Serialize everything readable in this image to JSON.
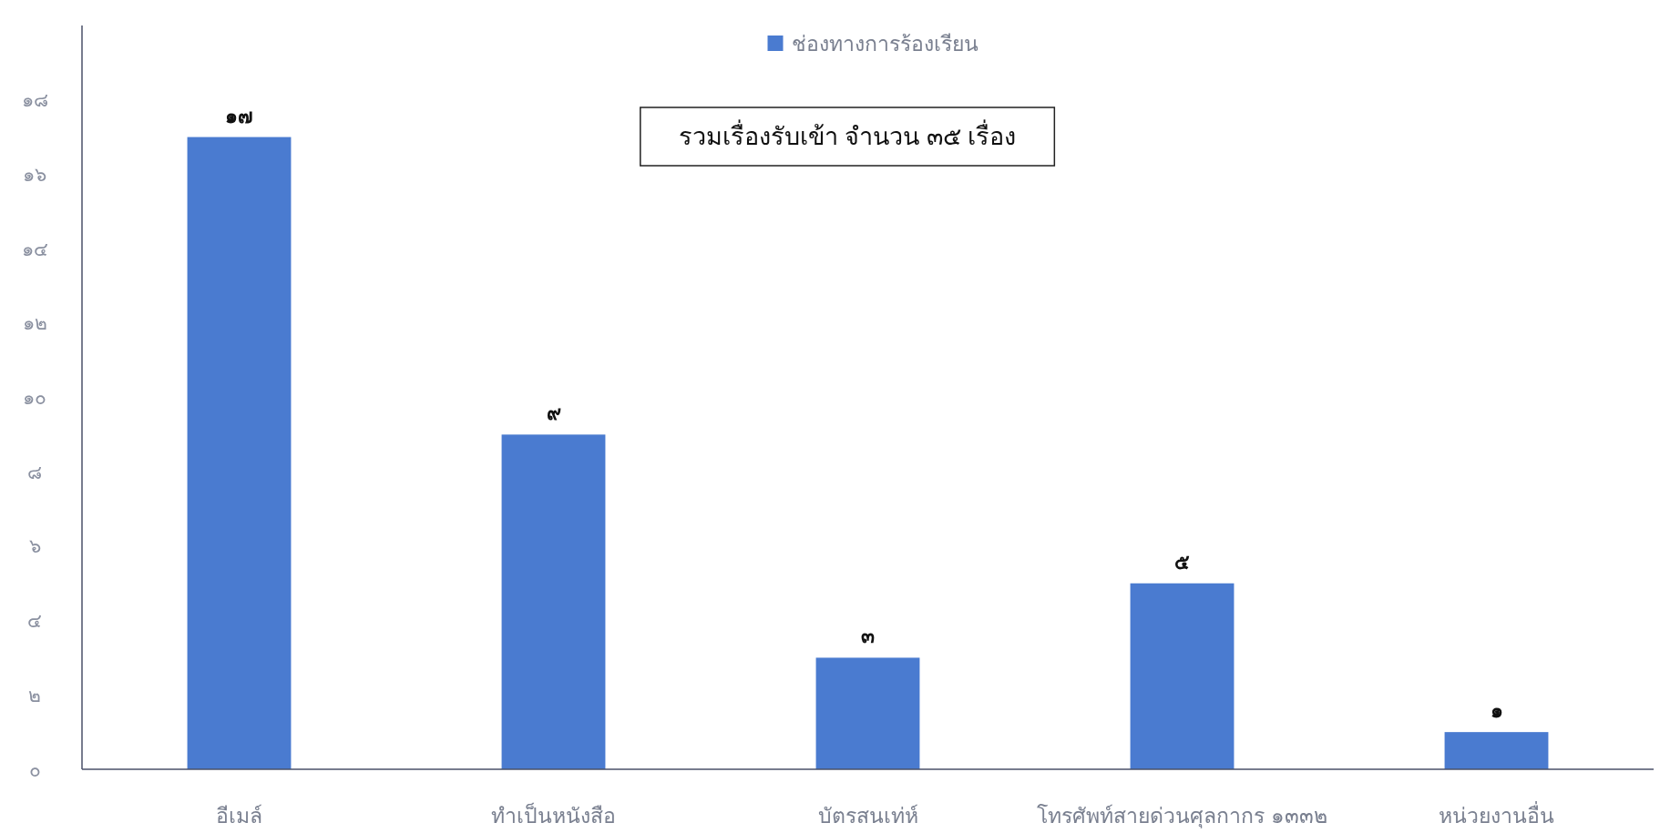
{
  "chart_data": {
    "type": "bar",
    "categories": [
      "อีเมล์",
      "ทำเป็นหนังสือ",
      "บัตรสนเท่ห์",
      "โทรศัพท์สายด่วนศุลกากร ๑๓๓๒",
      "หน่วยงานอื่น"
    ],
    "series": [
      {
        "name": "ช่องทางการร้องเรียน",
        "color": "#4a7bd0",
        "values": [
          17,
          9,
          3,
          5,
          1
        ],
        "value_labels": [
          "๑๗",
          "๙",
          "๓",
          "๕",
          "๑"
        ]
      }
    ],
    "ylim": [
      0,
      20
    ],
    "yticks": [
      {
        "value": 0,
        "label": "๐"
      },
      {
        "value": 2,
        "label": "๒"
      },
      {
        "value": 4,
        "label": "๔"
      },
      {
        "value": 6,
        "label": "๖"
      },
      {
        "value": 8,
        "label": "๘"
      },
      {
        "value": 10,
        "label": "๑๐"
      },
      {
        "value": 12,
        "label": "๑๒"
      },
      {
        "value": 14,
        "label": "๑๔"
      },
      {
        "value": 16,
        "label": "๑๖"
      },
      {
        "value": 18,
        "label": "๑๘"
      }
    ],
    "legend": "top",
    "grid": false,
    "annotations": [
      "รวมเรื่องรับเข้า จำนวน ๓๕ เรื่อง"
    ]
  }
}
